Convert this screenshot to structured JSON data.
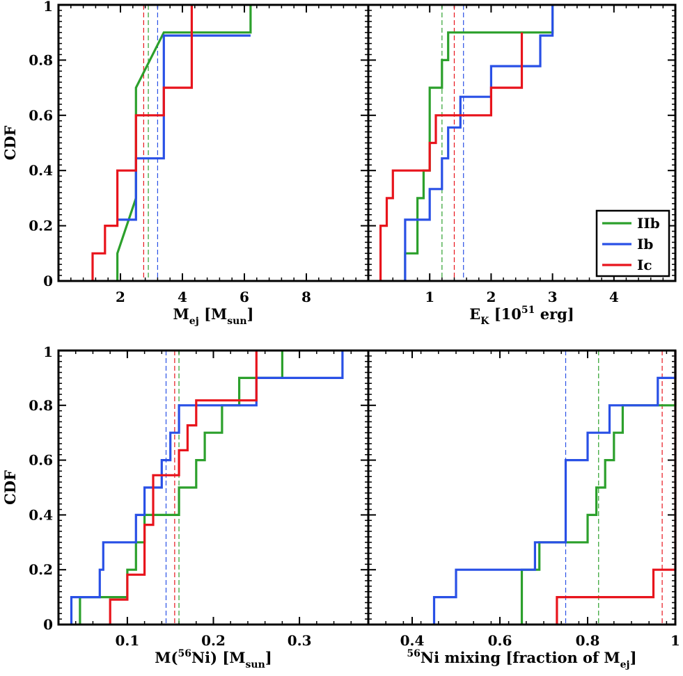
{
  "chart_data": [
    {
      "type": "line",
      "subtype": "step-cdf",
      "panel": "top-left",
      "xlabel": {
        "main": "M",
        "sub": "ej",
        "mid": " [M",
        "sub2": "sun",
        "end": "]"
      },
      "ylabel": "CDF",
      "xlim": [
        0,
        10
      ],
      "ylim": [
        0,
        1
      ],
      "xticks": [
        2,
        4,
        6,
        8
      ],
      "xtick_labels": [
        "2",
        "4",
        "6",
        "8"
      ],
      "yticks": [
        0,
        0.2,
        0.4,
        0.6,
        0.8,
        1
      ],
      "ytick_labels": [
        "0",
        "0.2",
        "0.4",
        "0.6",
        "0.8",
        "1"
      ],
      "series": [
        {
          "name": "IIb",
          "color": "#2ca02c",
          "x": [
            1.9,
            1.9,
            2.5,
            2.5,
            3.4,
            6.2,
            6.2
          ],
          "y": [
            0,
            0.1,
            0.3,
            0.7,
            0.9,
            0.9,
            1.0
          ]
        },
        {
          "name": "Ib",
          "color": "#2950e6",
          "x": [
            1.9,
            2.5,
            2.5,
            3.4,
            3.4,
            6.2
          ],
          "y": [
            0.222,
            0.222,
            0.444,
            0.444,
            0.889,
            0.889
          ]
        },
        {
          "name": "Ic",
          "color": "#e8141c",
          "x": [
            1.1,
            1.1,
            1.5,
            1.5,
            1.9,
            1.9,
            2.5,
            2.5,
            3.4,
            3.4,
            4.3,
            4.3
          ],
          "y": [
            0,
            0.1,
            0.1,
            0.2,
            0.2,
            0.4,
            0.4,
            0.6,
            0.6,
            0.7,
            0.7,
            1.0
          ]
        }
      ],
      "medians": [
        {
          "name": "Ic",
          "color": "#e8141c",
          "x": 2.75
        },
        {
          "name": "IIb",
          "color": "#2ca02c",
          "x": 2.9
        },
        {
          "name": "Ib",
          "color": "#2950e6",
          "x": 3.2
        }
      ]
    },
    {
      "type": "line",
      "subtype": "step-cdf",
      "panel": "top-right",
      "xlabel": {
        "main": "E",
        "sub": "K",
        "mid": " [10",
        "sup": "51",
        "end": " erg]"
      },
      "ylabel": "",
      "xlim": [
        0,
        5
      ],
      "ylim": [
        0,
        1
      ],
      "xticks": [
        1,
        2,
        3,
        4
      ],
      "xtick_labels": [
        "1",
        "2",
        "3",
        "4"
      ],
      "yticks": [
        0,
        0.2,
        0.4,
        0.6,
        0.8,
        1
      ],
      "ytick_labels": [],
      "series": [
        {
          "name": "IIb",
          "color": "#2ca02c",
          "x": [
            0.6,
            0.6,
            0.8,
            0.8,
            0.9,
            0.9,
            1.0,
            1.0,
            1.2,
            1.2,
            1.3,
            1.3,
            3.0,
            3.0
          ],
          "y": [
            0,
            0.1,
            0.1,
            0.3,
            0.3,
            0.4,
            0.4,
            0.7,
            0.7,
            0.8,
            0.8,
            0.9,
            0.9,
            1.0
          ]
        },
        {
          "name": "Ib",
          "color": "#2950e6",
          "x": [
            0.6,
            0.6,
            0.8,
            0.8,
            1.0,
            1.0,
            1.2,
            1.2,
            1.3,
            1.3,
            1.5,
            1.5,
            2.0,
            2.0,
            2.6,
            2.6,
            2.8,
            2.8,
            3.0,
            3.0
          ],
          "y": [
            0,
            0.222,
            0.222,
            0.222,
            0.222,
            0.333,
            0.333,
            0.444,
            0.444,
            0.556,
            0.556,
            0.667,
            0.667,
            0.778,
            0.778,
            0.778,
            0.778,
            0.889,
            0.889,
            1.0
          ]
        },
        {
          "name": "Ic",
          "color": "#e8141c",
          "x": [
            0.2,
            0.2,
            0.3,
            0.3,
            0.4,
            0.4,
            0.6,
            0.6,
            1.0,
            1.0,
            1.1,
            1.1,
            2.0,
            2.0,
            2.5,
            2.5
          ],
          "y": [
            0,
            0.2,
            0.2,
            0.3,
            0.3,
            0.4,
            0.4,
            0.4,
            0.4,
            0.5,
            0.5,
            0.6,
            0.6,
            0.7,
            0.7,
            0.9
          ]
        }
      ],
      "medians": [
        {
          "name": "IIb",
          "color": "#2ca02c",
          "x": 1.2
        },
        {
          "name": "Ic",
          "color": "#e8141c",
          "x": 1.4
        },
        {
          "name": "Ib",
          "color": "#2950e6",
          "x": 1.55
        }
      ],
      "legend": {
        "placement": "bottom-right",
        "entries": [
          "IIb",
          "Ib",
          "Ic"
        ]
      }
    },
    {
      "type": "line",
      "subtype": "step-cdf",
      "panel": "bottom-left",
      "xlabel": {
        "main": "M(",
        "sup": "56",
        "mid": "Ni) [M",
        "sub": "sun",
        "end": "]"
      },
      "ylabel": "CDF",
      "xlim": [
        0.02,
        0.38
      ],
      "ylim": [
        0,
        1
      ],
      "xticks": [
        0.1,
        0.2,
        0.3
      ],
      "xtick_labels": [
        "0.1",
        "0.2",
        "0.3"
      ],
      "yticks": [
        0,
        0.2,
        0.4,
        0.6,
        0.8,
        1
      ],
      "ytick_labels": [
        "0",
        "0.2",
        "0.4",
        "0.6",
        "0.8",
        "1"
      ],
      "series": [
        {
          "name": "IIb",
          "color": "#2ca02c",
          "x": [
            0.045,
            0.045,
            0.1,
            0.1,
            0.11,
            0.11,
            0.12,
            0.12,
            0.16,
            0.16,
            0.18,
            0.18,
            0.19,
            0.19,
            0.21,
            0.21,
            0.23,
            0.23,
            0.28,
            0.28
          ],
          "y": [
            0,
            0.1,
            0.1,
            0.2,
            0.2,
            0.3,
            0.3,
            0.4,
            0.4,
            0.5,
            0.5,
            0.6,
            0.6,
            0.7,
            0.7,
            0.8,
            0.8,
            0.9,
            0.9,
            1.0
          ]
        },
        {
          "name": "Ib",
          "color": "#2950e6",
          "x": [
            0.035,
            0.035,
            0.068,
            0.068,
            0.072,
            0.072,
            0.11,
            0.11,
            0.12,
            0.12,
            0.14,
            0.14,
            0.15,
            0.15,
            0.16,
            0.16,
            0.25,
            0.25,
            0.35,
            0.35
          ],
          "y": [
            0,
            0.1,
            0.1,
            0.2,
            0.2,
            0.3,
            0.3,
            0.4,
            0.4,
            0.5,
            0.5,
            0.6,
            0.6,
            0.7,
            0.7,
            0.8,
            0.8,
            0.9,
            0.9,
            1.0
          ]
        },
        {
          "name": "Ic",
          "color": "#e8141c",
          "x": [
            0.08,
            0.08,
            0.1,
            0.1,
            0.12,
            0.12,
            0.13,
            0.13,
            0.16,
            0.16,
            0.17,
            0.17,
            0.18,
            0.18,
            0.2,
            0.2,
            0.25,
            0.25
          ],
          "y": [
            0,
            0.091,
            0.091,
            0.182,
            0.182,
            0.364,
            0.364,
            0.545,
            0.545,
            0.636,
            0.636,
            0.727,
            0.727,
            0.818,
            0.818,
            0.818,
            0.818,
            1.0
          ]
        }
      ],
      "medians": [
        {
          "name": "Ib",
          "color": "#2950e6",
          "x": 0.145
        },
        {
          "name": "Ic",
          "color": "#e8141c",
          "x": 0.155
        },
        {
          "name": "IIb",
          "color": "#2ca02c",
          "x": 0.16
        }
      ]
    },
    {
      "type": "line",
      "subtype": "step-cdf",
      "panel": "bottom-right",
      "xlabel": {
        "main": "",
        "sup": "56",
        "mid": "Ni mixing [fraction of M",
        "sub": "ej",
        "end": "]"
      },
      "ylabel": "",
      "xlim": [
        0.3,
        1.0
      ],
      "ylim": [
        0,
        1
      ],
      "xticks": [
        0.4,
        0.6,
        0.8,
        1
      ],
      "xtick_labels": [
        "0.4",
        "0.6",
        "0.8",
        "1"
      ],
      "yticks": [
        0,
        0.2,
        0.4,
        0.6,
        0.8,
        1
      ],
      "ytick_labels": [],
      "series": [
        {
          "name": "IIb",
          "color": "#2ca02c",
          "x": [
            0.65,
            0.65,
            0.69,
            0.69,
            0.8,
            0.8,
            0.82,
            0.82,
            0.84,
            0.84,
            0.86,
            0.86,
            0.88,
            0.88,
            1.0,
            1.0
          ],
          "y": [
            0,
            0.2,
            0.2,
            0.3,
            0.3,
            0.4,
            0.4,
            0.5,
            0.5,
            0.6,
            0.6,
            0.7,
            0.7,
            0.8,
            0.8,
            1.0
          ]
        },
        {
          "name": "Ib",
          "color": "#2950e6",
          "x": [
            0.45,
            0.45,
            0.5,
            0.5,
            0.68,
            0.68,
            0.75,
            0.75,
            0.8,
            0.8,
            0.85,
            0.85,
            0.96,
            0.96,
            1.0,
            1.0
          ],
          "y": [
            0,
            0.1,
            0.1,
            0.2,
            0.2,
            0.3,
            0.3,
            0.6,
            0.6,
            0.7,
            0.7,
            0.8,
            0.8,
            0.9,
            0.9,
            1.0
          ]
        },
        {
          "name": "Ic",
          "color": "#e8141c",
          "x": [
            0.73,
            0.73,
            0.95,
            0.95,
            1.0,
            1.0
          ],
          "y": [
            0,
            0.1,
            0.1,
            0.2,
            0.2,
            1.0
          ]
        }
      ],
      "medians": [
        {
          "name": "Ib",
          "color": "#2950e6",
          "x": 0.75
        },
        {
          "name": "IIb",
          "color": "#2ca02c",
          "x": 0.825
        },
        {
          "name": "Ic",
          "color": "#e8141c",
          "x": 0.97
        }
      ]
    }
  ]
}
